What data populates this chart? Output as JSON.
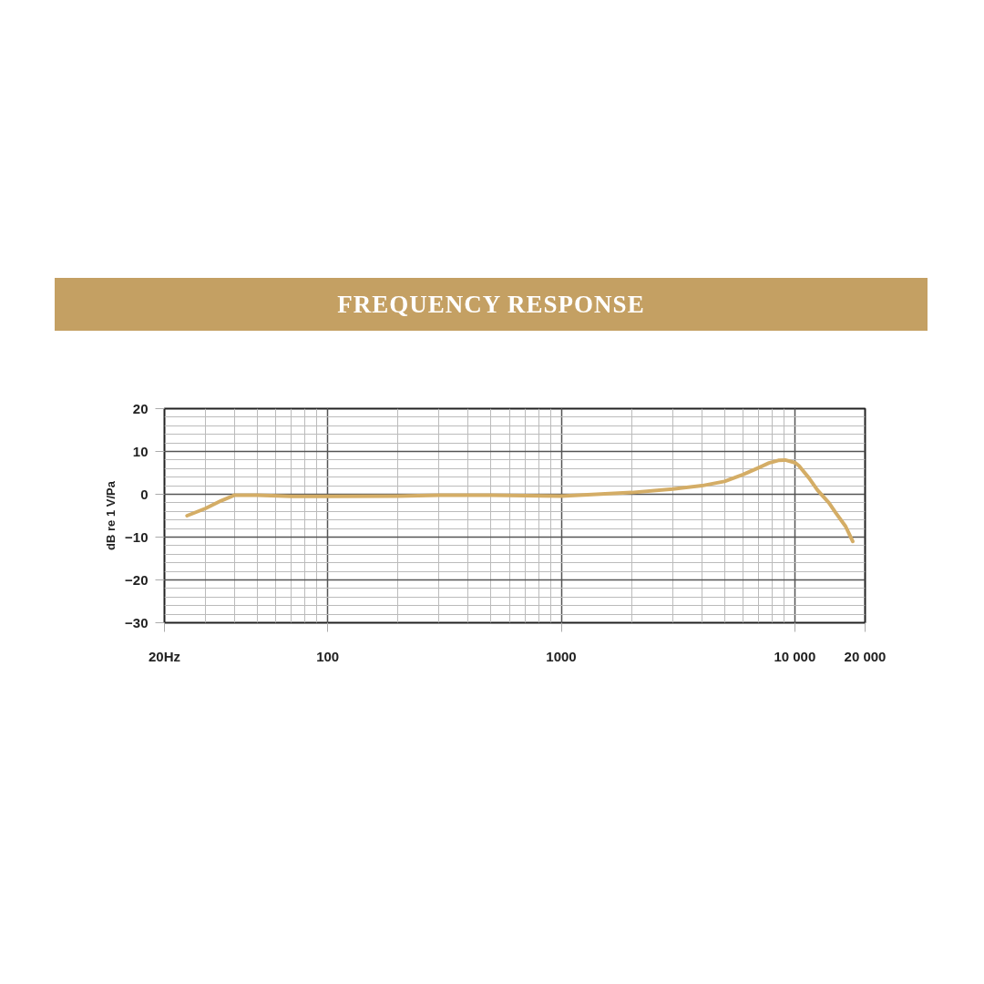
{
  "chart_data": {
    "type": "line",
    "title": "FREQUENCY RESPONSE",
    "ylabel": "dB re 1 V/Pa",
    "log": "x",
    "x": [
      25,
      30,
      35,
      40,
      50,
      70,
      100,
      200,
      300,
      500,
      1000,
      2000,
      3000,
      4000,
      5000,
      6000,
      7000,
      7750,
      8500,
      9100,
      10000,
      10400,
      11500,
      12500,
      14000,
      15000,
      16500,
      17700
    ],
    "series": [
      {
        "color": "#d4ad66",
        "values": [
          -5,
          -3.3,
          -1.5,
          -0.2,
          -0.2,
          -0.5,
          -0.5,
          -0.4,
          -0.2,
          -0.2,
          -0.4,
          0.4,
          1.2,
          2.0,
          3.0,
          4.6,
          6.2,
          7.3,
          7.9,
          8.0,
          7.4,
          6.7,
          3.8,
          1.0,
          -2.0,
          -4.4,
          -7.5,
          -11
        ]
      }
    ],
    "xlim": [
      20,
      20000
    ],
    "xticks": [
      {
        "value": 20,
        "label": "20Hz"
      },
      100,
      1000,
      {
        "value": 10000,
        "label": "10 000"
      },
      {
        "value": 20000,
        "label": "20 000"
      }
    ],
    "ylim": [
      -30,
      20
    ],
    "yticks": [
      -30,
      -20,
      -10,
      0,
      10,
      20
    ],
    "grid": true,
    "line_style": "solid"
  }
}
